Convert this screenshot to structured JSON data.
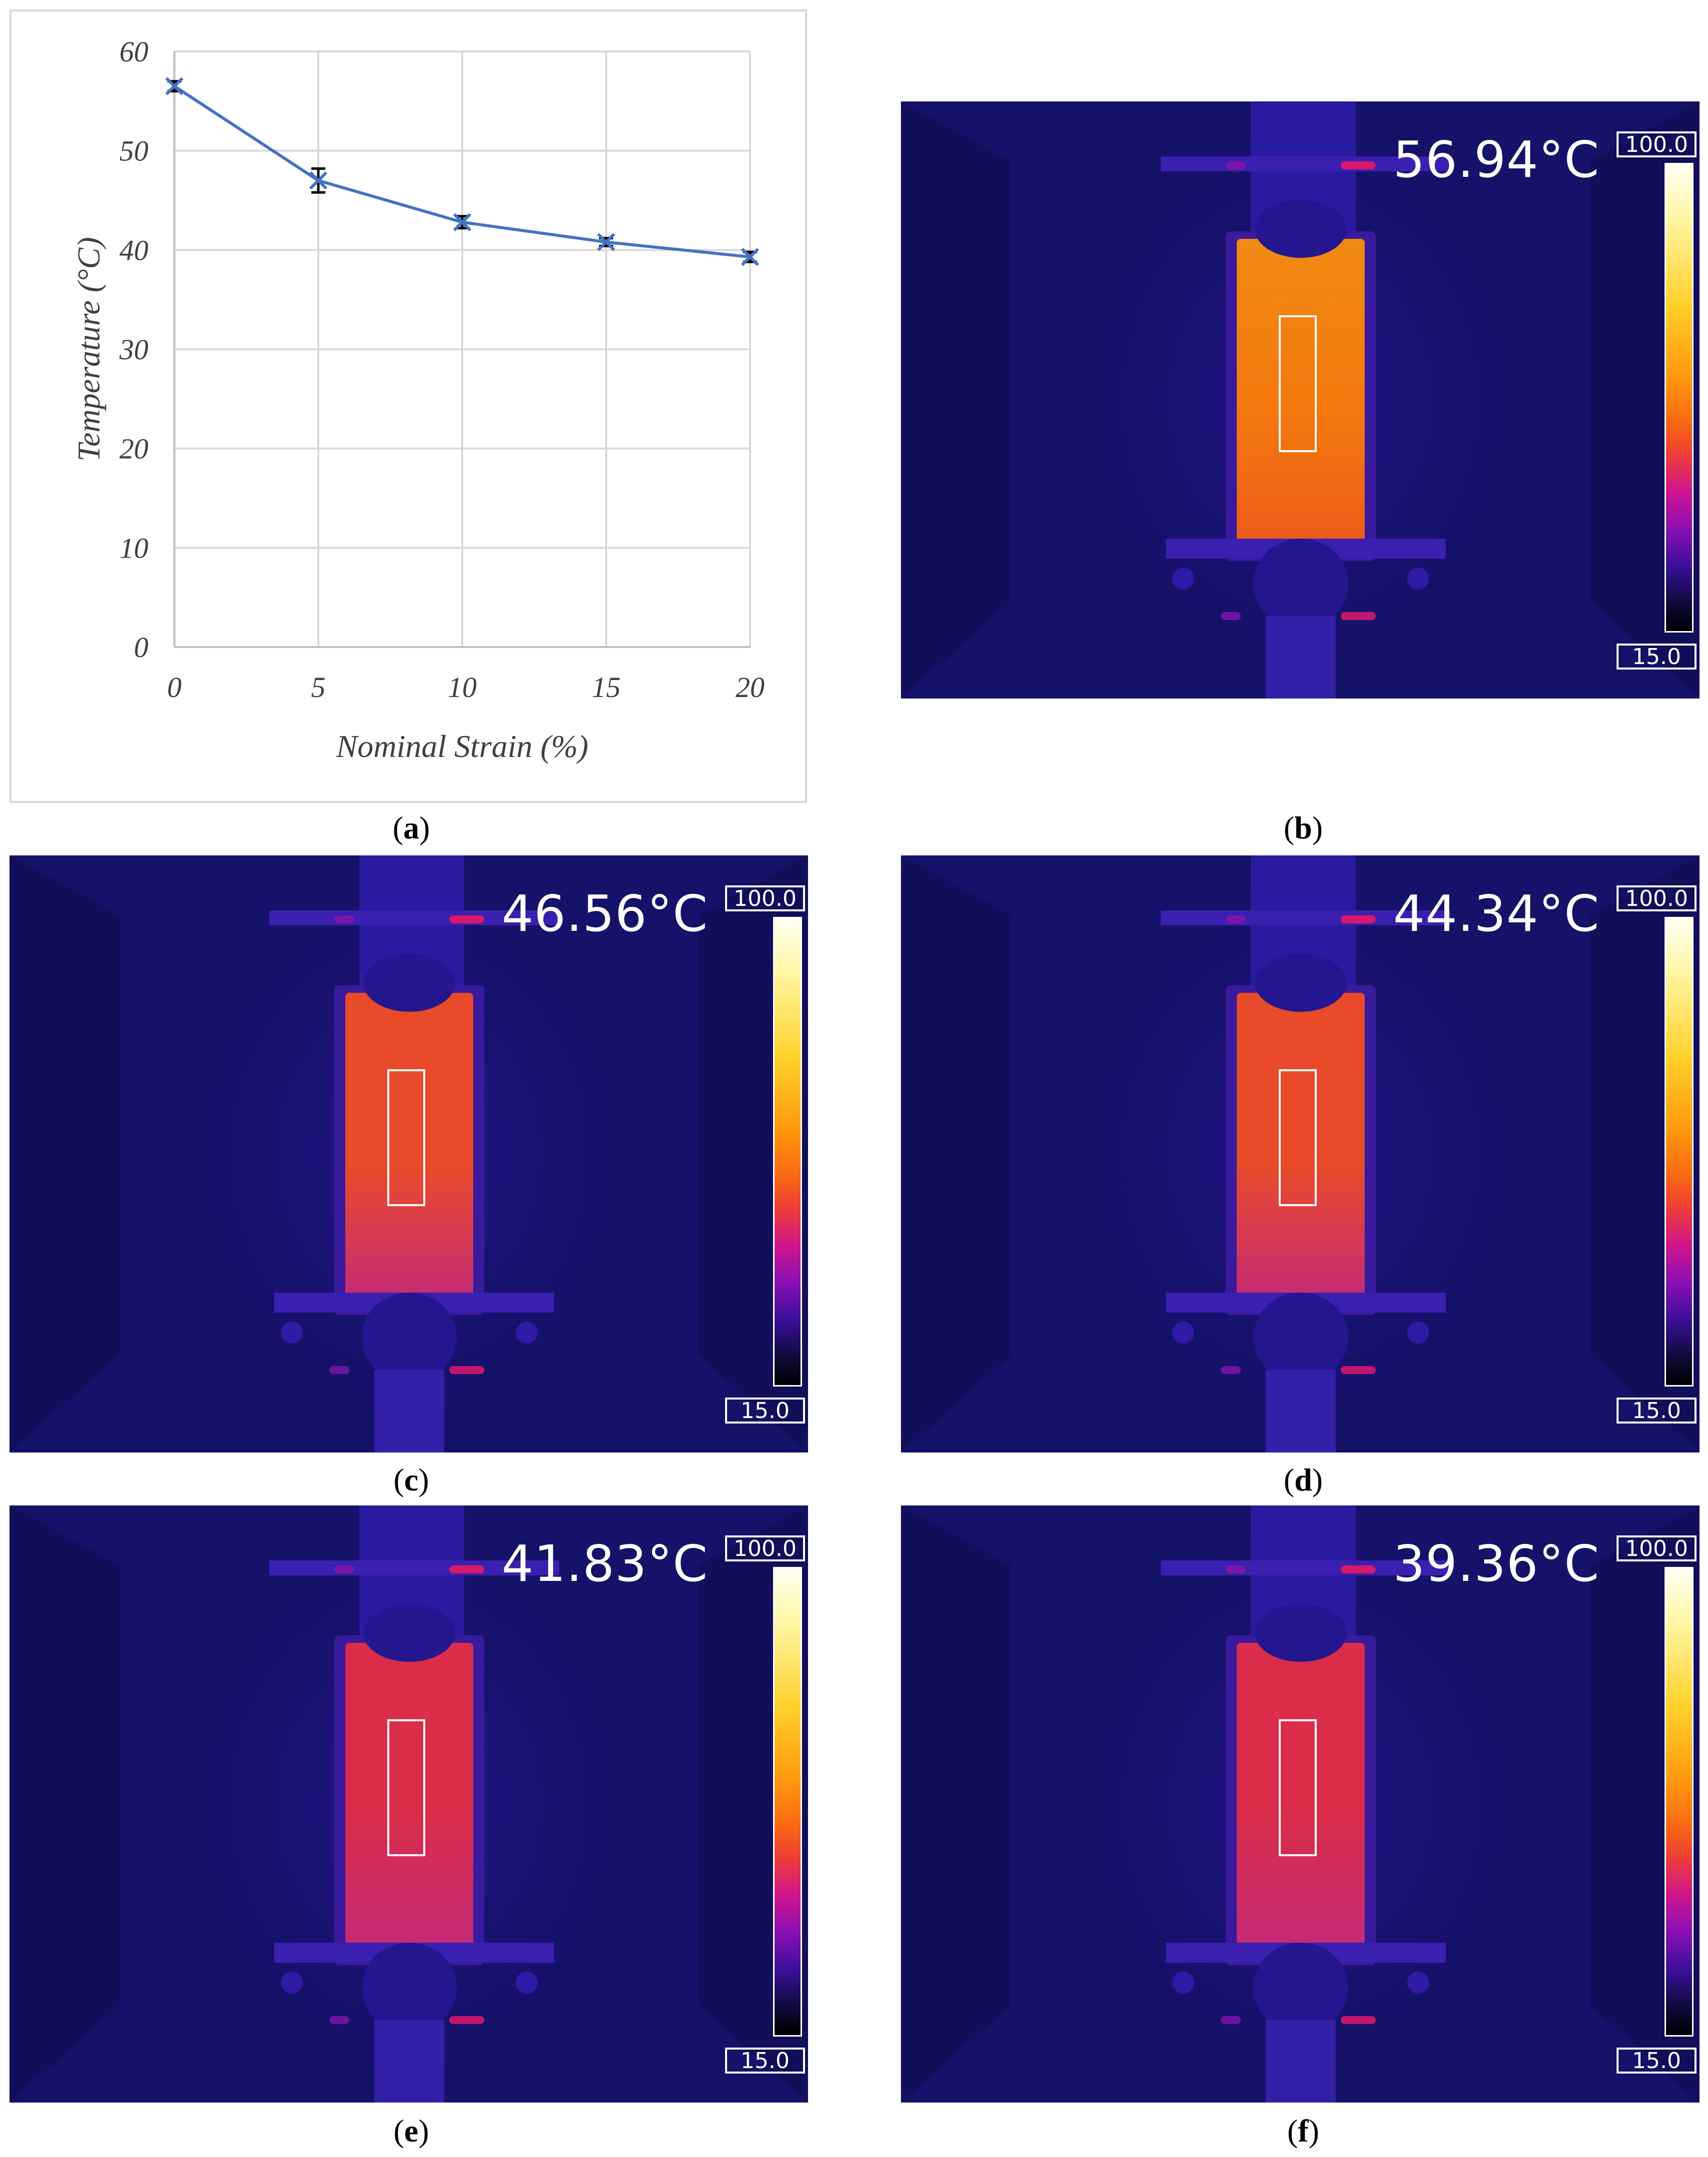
{
  "chart_data": {
    "type": "line",
    "xlabel": "Nominal Strain (%)",
    "ylabel": "Temperature (°C)",
    "x": [
      0,
      5,
      10,
      15,
      20
    ],
    "x_ticks": [
      "0",
      "5",
      "10",
      "15",
      "20"
    ],
    "y_ticks": [
      "0",
      "10",
      "20",
      "30",
      "40",
      "50",
      "60"
    ],
    "series": [
      {
        "values": [
          56.5,
          47.0,
          42.8,
          40.8,
          39.3
        ],
        "error": [
          0.5,
          1.2,
          0.6,
          0.4,
          0.5
        ]
      }
    ],
    "ylim": [
      0,
      60
    ],
    "xlim": [
      0,
      20
    ],
    "grid": true,
    "line_color": "#4472c4",
    "marker": "x"
  },
  "captions": {
    "a": "a",
    "b": "b",
    "c": "c",
    "d": "d",
    "e": "e",
    "f": "f"
  },
  "thermal_images": [
    {
      "id": "b",
      "temperature": "56.94°C",
      "scale_max": "100.0",
      "scale_min": "15.0"
    },
    {
      "id": "c",
      "temperature": "46.56°C",
      "scale_max": "100.0",
      "scale_min": "15.0"
    },
    {
      "id": "d",
      "temperature": "44.34°C",
      "scale_max": "100.0",
      "scale_min": "15.0"
    },
    {
      "id": "e",
      "temperature": "41.83°C",
      "scale_max": "100.0",
      "scale_min": "15.0"
    },
    {
      "id": "f",
      "temperature": "39.36°C",
      "scale_max": "100.0",
      "scale_min": "15.0"
    }
  ],
  "colors": {
    "background_thermal": "#15126a",
    "specimen_hot": "#f4780e",
    "specimen_warm": "#e84a2a",
    "specimen_mid": "#d92d4a"
  }
}
